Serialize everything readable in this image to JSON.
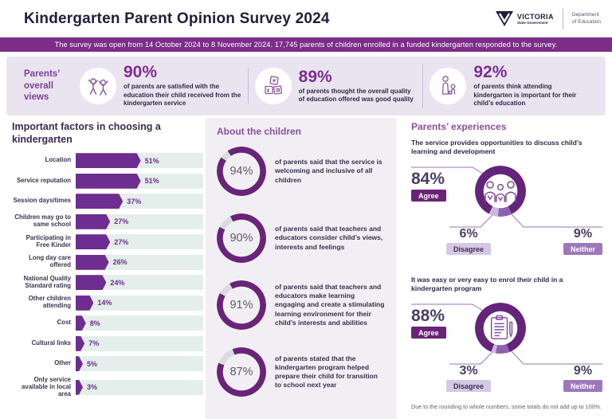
{
  "header": {
    "title": "Kindergarten Parent Opinion Survey 2024",
    "logo": {
      "brand": "VICTORIA",
      "sub": "State Government",
      "dept_line1": "Department",
      "dept_line2": "of Education"
    }
  },
  "banner": {
    "text": "The survey was open from 14 October 2024 to 8 November 2024. 17,745 parents of children enrolled in a funded kindergarten responded to the survey."
  },
  "overall": {
    "label": "Parents’ overall views",
    "stats": [
      {
        "pct_label": "90%",
        "text": "of parents are satisfied with the education their child received from the kindergarten service",
        "icon": "children-playing-icon"
      },
      {
        "pct_label": "89%",
        "text": "of parents thought the overall quality of education offered was good quality",
        "icon": "building-blocks-icon"
      },
      {
        "pct_label": "92%",
        "text": "of parents think attending kindergarten is important for their child’s education",
        "icon": "parent-child-icon"
      }
    ]
  },
  "factors": {
    "title": "Important factors in choosing a kindergarten",
    "items": [
      {
        "label": "Location",
        "pct": 51,
        "pct_label": "51%"
      },
      {
        "label": "Service reputation",
        "pct": 51,
        "pct_label": "51%"
      },
      {
        "label": "Session days/times",
        "pct": 37,
        "pct_label": "37%"
      },
      {
        "label": "Children may go to same school",
        "pct": 27,
        "pct_label": "27%"
      },
      {
        "label": "Participating in Free Kinder",
        "pct": 27,
        "pct_label": "27%"
      },
      {
        "label": "Long day care offered",
        "pct": 26,
        "pct_label": "26%"
      },
      {
        "label": "National Quality Standard rating",
        "pct": 24,
        "pct_label": "24%"
      },
      {
        "label": "Other children attending",
        "pct": 14,
        "pct_label": "14%"
      },
      {
        "label": "Cost",
        "pct": 8,
        "pct_label": "8%"
      },
      {
        "label": "Cultural links",
        "pct": 7,
        "pct_label": "7%"
      },
      {
        "label": "Other",
        "pct": 5,
        "pct_label": "5%"
      },
      {
        "label": "Only service available in local area",
        "pct": 3,
        "pct_label": "3%"
      }
    ]
  },
  "about": {
    "title": "About the children",
    "items": [
      {
        "pct": 94,
        "pct_label": "94%",
        "text": "of parents said that the service is welcoming and inclusive of all children"
      },
      {
        "pct": 90,
        "pct_label": "90%",
        "text": "of parents said that teachers and educators consider child’s views, interests and feelings"
      },
      {
        "pct": 91,
        "pct_label": "91%",
        "text": "of parents said that teachers and educators make learning engaging and create a stimulating learning environment for their child’s interests and abilities"
      },
      {
        "pct": 87,
        "pct_label": "87%",
        "text": "of parents stated that the kindergarten program helped prepare their child for transition to school next year"
      }
    ]
  },
  "experiences": {
    "title": "Parents’ experiences",
    "legend": {
      "agree": "Agree",
      "disagree": "Disagree",
      "neither": "Neither"
    },
    "charts": [
      {
        "statement": "The service provides opportunities to discuss child’s learning and development",
        "agree": 84,
        "agree_label": "84%",
        "disagree": 6,
        "disagree_label": "6%",
        "neither": 9,
        "neither_label": "9%",
        "icon": "people-icon"
      },
      {
        "statement": "It was easy or very easy to enrol their child in a kindergarten program",
        "agree": 88,
        "agree_label": "88%",
        "disagree": 3,
        "disagree_label": "3%",
        "neither": 9,
        "neither_label": "9%",
        "icon": "clipboard-icon"
      }
    ],
    "footnote": "Due to the rounding to whole numbers, some totals do not add up to 100%."
  },
  "colors": {
    "banner_bg": "#7B2D87",
    "accent_purple": "#6E2D90",
    "ring_purple": "#692478",
    "ring_gray": "#DCDBE0",
    "track_mint": "#E4EFEB",
    "band_bg": "#EAE4F0",
    "mid_panel_bg": "#F2EFF4",
    "agree": "#63247A",
    "disagree": "#CBB9DF",
    "neither": "#8E62B0",
    "heading_dark": "#392A52",
    "heading_purple": "#8A4F9E"
  },
  "chart_data": [
    {
      "type": "bar",
      "title": "Important factors in choosing a kindergarten",
      "orientation": "horizontal",
      "categories": [
        "Location",
        "Service reputation",
        "Session days/times",
        "Children may go to same school",
        "Participating in Free Kinder",
        "Long day care offered",
        "National Quality Standard rating",
        "Other children attending",
        "Cost",
        "Cultural links",
        "Other",
        "Only service available in local area"
      ],
      "values": [
        51,
        51,
        37,
        27,
        27,
        26,
        24,
        14,
        8,
        7,
        5,
        3
      ],
      "unit": "%",
      "xlim": [
        0,
        100
      ],
      "grid": false,
      "legend_position": "none"
    },
    {
      "type": "pie",
      "title": "About the children (donut gauges, % of parents agreeing)",
      "series": [
        {
          "name": "service is welcoming and inclusive of all children",
          "values": [
            94
          ]
        },
        {
          "name": "teachers and educators consider child’s views, interests and feelings",
          "values": [
            90
          ]
        },
        {
          "name": "teachers and educators make learning engaging and create a stimulating learning environment",
          "values": [
            91
          ]
        },
        {
          "name": "kindergarten program helped prepare their child for transition to school next year",
          "values": [
            87
          ]
        }
      ],
      "unit": "%"
    },
    {
      "type": "pie",
      "title": "The service provides opportunities to discuss child’s learning and development",
      "categories": [
        "Agree",
        "Disagree",
        "Neither"
      ],
      "values": [
        84,
        6,
        9
      ],
      "unit": "%"
    },
    {
      "type": "pie",
      "title": "It was easy or very easy to enrol their child in a kindergarten program",
      "categories": [
        "Agree",
        "Disagree",
        "Neither"
      ],
      "values": [
        88,
        3,
        9
      ],
      "unit": "%"
    },
    {
      "type": "table",
      "title": "Parents’ overall views",
      "categories": [
        "satisfied with the education their child received",
        "thought the overall quality of education offered was good",
        "think attending kindergarten is important for their child’s education"
      ],
      "values": [
        90,
        89,
        92
      ],
      "unit": "%"
    }
  ]
}
